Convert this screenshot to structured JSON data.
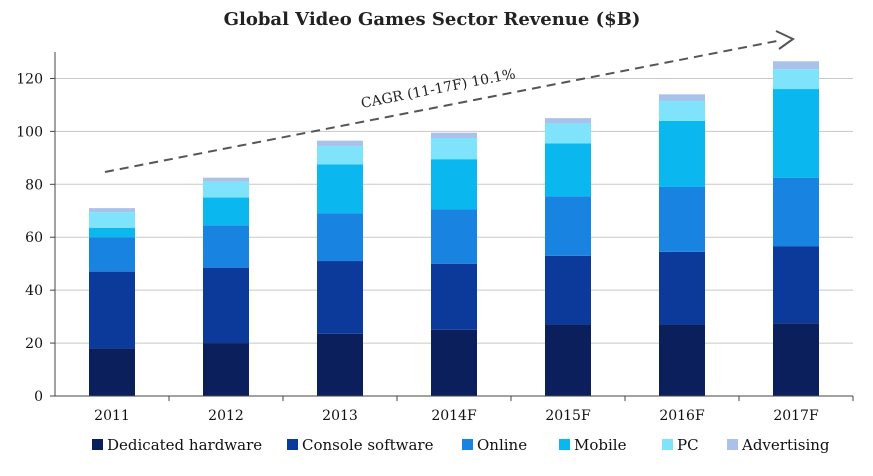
{
  "chart_data": {
    "type": "bar",
    "stacked": true,
    "title": "Global Video Games Sector Revenue ($B)",
    "categories": [
      "2011",
      "2012",
      "2013",
      "2014F",
      "2015F",
      "2016F",
      "2017F"
    ],
    "ylim": [
      0,
      130
    ],
    "yticks": [
      0,
      20,
      40,
      60,
      80,
      100,
      120
    ],
    "grid": true,
    "legend_position": "bottom",
    "series": [
      {
        "name": "Dedicated hardware",
        "color": "#0a1f5c",
        "values": [
          18,
          20,
          23.5,
          25,
          27,
          27,
          27.5
        ]
      },
      {
        "name": "Console software",
        "color": "#0b3a9a",
        "values": [
          29,
          28.5,
          27.5,
          25,
          26,
          27.5,
          29
        ]
      },
      {
        "name": "Online",
        "color": "#1883e0",
        "values": [
          13,
          16,
          18,
          20.5,
          22.5,
          24.5,
          26
        ]
      },
      {
        "name": "Mobile",
        "color": "#0ab8ef",
        "values": [
          3.5,
          10.5,
          18.5,
          19,
          20,
          25,
          33.5
        ]
      },
      {
        "name": "PC",
        "color": "#7fe4fb",
        "values": [
          6,
          6,
          7,
          8,
          7.5,
          7.5,
          7.5
        ]
      },
      {
        "name": "Advertising",
        "color": "#a8c2ea",
        "values": [
          1.5,
          1.5,
          2,
          2,
          2,
          2.5,
          3
        ]
      }
    ],
    "annotations": [
      {
        "text": "CAGR (11-17F) 10.1%",
        "type": "trend-arrow"
      }
    ]
  }
}
